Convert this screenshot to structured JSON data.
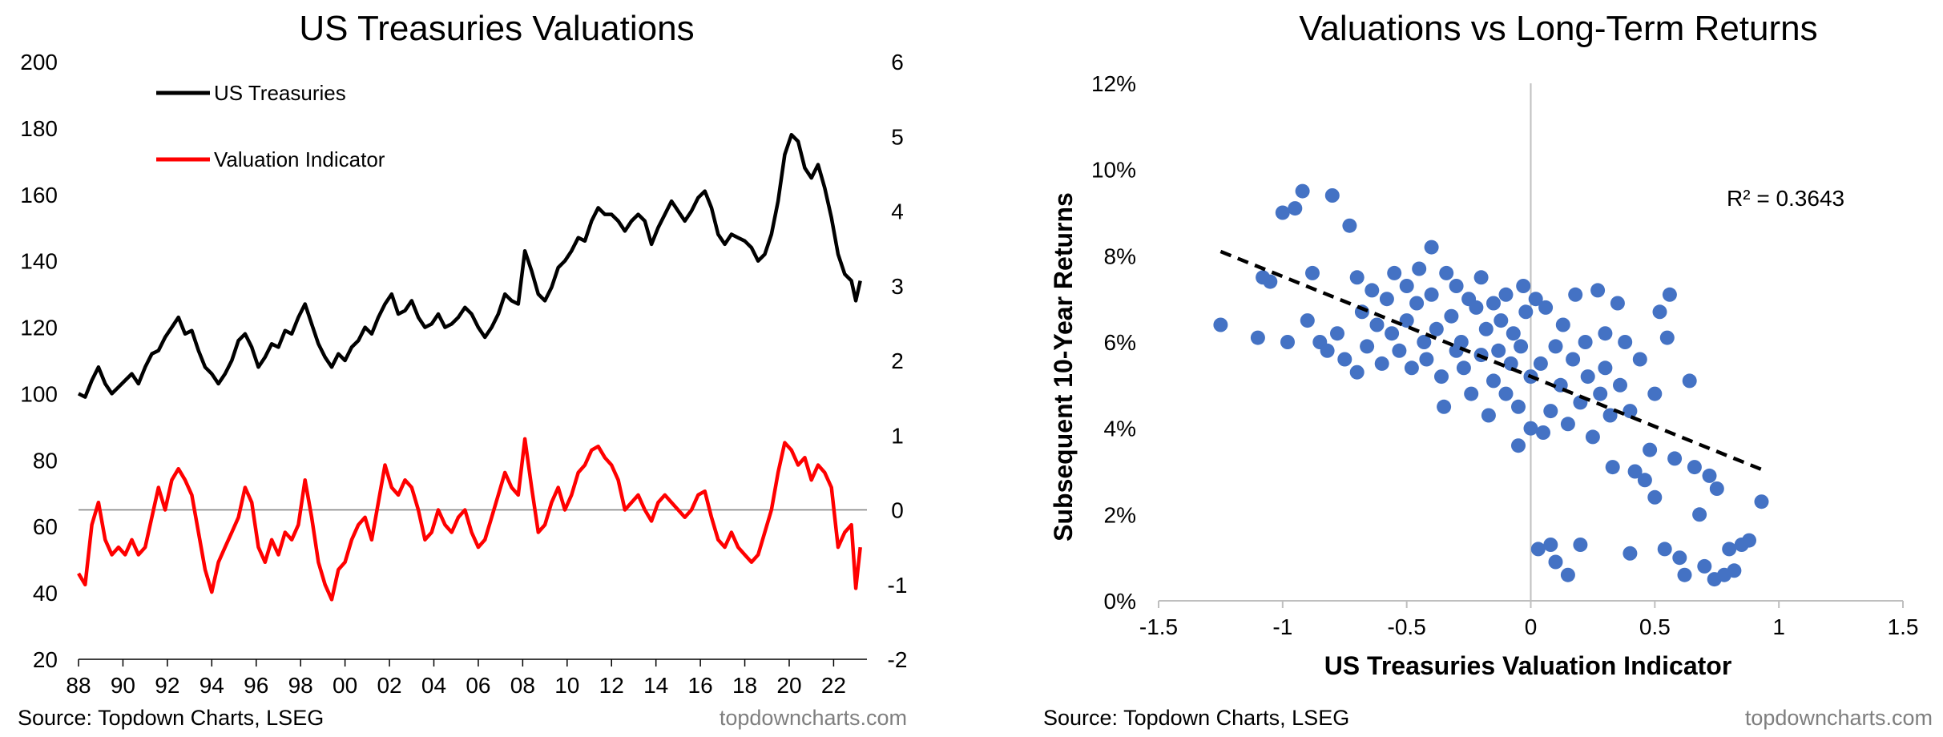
{
  "colors": {
    "treasuries": "#000000",
    "valuation": "#ff0000",
    "scatter": "#4472c4",
    "trendline": "#000000",
    "zero_line": "#7f7f7f",
    "footer_site": "#7f7f7f"
  },
  "chart_data": [
    {
      "type": "line",
      "title": "US Treasuries Valuations",
      "left_axis": {
        "range": [
          20,
          200
        ],
        "ticks": [
          "20",
          "40",
          "60",
          "80",
          "100",
          "120",
          "140",
          "160",
          "180",
          "200"
        ]
      },
      "right_axis": {
        "range": [
          -2,
          6
        ],
        "ticks": [
          "-2",
          "-1",
          "0",
          "1",
          "2",
          "3",
          "4",
          "5",
          "6"
        ]
      },
      "x_axis": {
        "range": [
          1988,
          2023.5
        ],
        "ticks": [
          "88",
          "90",
          "92",
          "94",
          "96",
          "98",
          "00",
          "02",
          "04",
          "06",
          "08",
          "10",
          "12",
          "14",
          "16",
          "18",
          "20",
          "22"
        ]
      },
      "legend_position": "top-left",
      "series": [
        {
          "name": "US Treasuries",
          "axis": "left",
          "x": [
            1988.0,
            1988.3,
            1988.6,
            1988.9,
            1989.2,
            1989.5,
            1989.8,
            1990.1,
            1990.4,
            1990.7,
            1991.0,
            1991.3,
            1991.6,
            1991.9,
            1992.2,
            1992.5,
            1992.8,
            1993.1,
            1993.4,
            1993.7,
            1994.0,
            1994.3,
            1994.6,
            1994.9,
            1995.2,
            1995.5,
            1995.8,
            1996.1,
            1996.4,
            1996.7,
            1997.0,
            1997.3,
            1997.6,
            1997.9,
            1998.2,
            1998.5,
            1998.8,
            1999.1,
            1999.4,
            1999.7,
            2000.0,
            2000.3,
            2000.6,
            2000.9,
            2001.2,
            2001.5,
            2001.8,
            2002.1,
            2002.4,
            2002.7,
            2003.0,
            2003.3,
            2003.6,
            2003.9,
            2004.2,
            2004.5,
            2004.8,
            2005.1,
            2005.4,
            2005.7,
            2006.0,
            2006.3,
            2006.6,
            2006.9,
            2007.2,
            2007.5,
            2007.8,
            2008.1,
            2008.4,
            2008.7,
            2009.0,
            2009.3,
            2009.6,
            2009.9,
            2010.2,
            2010.5,
            2010.8,
            2011.1,
            2011.4,
            2011.7,
            2012.0,
            2012.3,
            2012.6,
            2012.9,
            2013.2,
            2013.5,
            2013.8,
            2014.1,
            2014.4,
            2014.7,
            2015.0,
            2015.3,
            2015.6,
            2015.9,
            2016.2,
            2016.5,
            2016.8,
            2017.1,
            2017.4,
            2017.7,
            2018.0,
            2018.3,
            2018.6,
            2018.9,
            2019.2,
            2019.5,
            2019.8,
            2020.1,
            2020.4,
            2020.7,
            2021.0,
            2021.3,
            2021.6,
            2021.9,
            2022.2,
            2022.5,
            2022.8,
            2023.0,
            2023.2
          ],
          "values": [
            100,
            99,
            104,
            108,
            103,
            100,
            102,
            104,
            106,
            103,
            108,
            112,
            113,
            117,
            120,
            123,
            118,
            119,
            113,
            108,
            106,
            103,
            106,
            110,
            116,
            118,
            114,
            108,
            111,
            115,
            114,
            119,
            118,
            123,
            127,
            121,
            115,
            111,
            108,
            112,
            110,
            114,
            116,
            120,
            118,
            123,
            127,
            130,
            124,
            125,
            128,
            123,
            120,
            121,
            124,
            120,
            121,
            123,
            126,
            124,
            120,
            117,
            120,
            124,
            130,
            128,
            127,
            143,
            137,
            130,
            128,
            132,
            138,
            140,
            143,
            147,
            146,
            152,
            156,
            154,
            154,
            152,
            149,
            152,
            154,
            152,
            145,
            150,
            154,
            158,
            155,
            152,
            155,
            159,
            161,
            156,
            148,
            145,
            148,
            147,
            146,
            144,
            140,
            142,
            148,
            158,
            172,
            178,
            176,
            168,
            165,
            169,
            162,
            153,
            142,
            136,
            134,
            128,
            134
          ]
        },
        {
          "name": "Valuation Indicator",
          "axis": "right",
          "x": [
            1988.0,
            1988.3,
            1988.6,
            1988.9,
            1989.2,
            1989.5,
            1989.8,
            1990.1,
            1990.4,
            1990.7,
            1991.0,
            1991.3,
            1991.6,
            1991.9,
            1992.2,
            1992.5,
            1992.8,
            1993.1,
            1993.4,
            1993.7,
            1994.0,
            1994.3,
            1994.6,
            1994.9,
            1995.2,
            1995.5,
            1995.8,
            1996.1,
            1996.4,
            1996.7,
            1997.0,
            1997.3,
            1997.6,
            1997.9,
            1998.2,
            1998.5,
            1998.8,
            1999.1,
            1999.4,
            1999.7,
            2000.0,
            2000.3,
            2000.6,
            2000.9,
            2001.2,
            2001.5,
            2001.8,
            2002.1,
            2002.4,
            2002.7,
            2003.0,
            2003.3,
            2003.6,
            2003.9,
            2004.2,
            2004.5,
            2004.8,
            2005.1,
            2005.4,
            2005.7,
            2006.0,
            2006.3,
            2006.6,
            2006.9,
            2007.2,
            2007.5,
            2007.8,
            2008.1,
            2008.4,
            2008.7,
            2009.0,
            2009.3,
            2009.6,
            2009.9,
            2010.2,
            2010.5,
            2010.8,
            2011.1,
            2011.4,
            2011.7,
            2012.0,
            2012.3,
            2012.6,
            2012.9,
            2013.2,
            2013.5,
            2013.8,
            2014.1,
            2014.4,
            2014.7,
            2015.0,
            2015.3,
            2015.6,
            2015.9,
            2016.2,
            2016.5,
            2016.8,
            2017.1,
            2017.4,
            2017.7,
            2018.0,
            2018.3,
            2018.6,
            2018.9,
            2019.2,
            2019.5,
            2019.8,
            2020.1,
            2020.4,
            2020.7,
            2021.0,
            2021.3,
            2021.6,
            2021.9,
            2022.2,
            2022.5,
            2022.8,
            2023.0,
            2023.2
          ],
          "values": [
            -0.85,
            -1.0,
            -0.2,
            0.1,
            -0.4,
            -0.6,
            -0.5,
            -0.6,
            -0.4,
            -0.6,
            -0.5,
            -0.1,
            0.3,
            0.0,
            0.4,
            0.55,
            0.4,
            0.2,
            -0.3,
            -0.8,
            -1.1,
            -0.7,
            -0.5,
            -0.3,
            -0.1,
            0.3,
            0.1,
            -0.5,
            -0.7,
            -0.4,
            -0.6,
            -0.3,
            -0.4,
            -0.2,
            0.4,
            -0.1,
            -0.7,
            -1.0,
            -1.2,
            -0.8,
            -0.7,
            -0.4,
            -0.2,
            -0.1,
            -0.4,
            0.1,
            0.6,
            0.3,
            0.2,
            0.4,
            0.3,
            0.0,
            -0.4,
            -0.3,
            0.0,
            -0.2,
            -0.3,
            -0.1,
            0.0,
            -0.3,
            -0.5,
            -0.4,
            -0.1,
            0.2,
            0.5,
            0.3,
            0.2,
            0.95,
            0.3,
            -0.3,
            -0.2,
            0.1,
            0.3,
            0.0,
            0.2,
            0.5,
            0.6,
            0.8,
            0.85,
            0.7,
            0.6,
            0.4,
            0.0,
            0.1,
            0.2,
            0.0,
            -0.15,
            0.1,
            0.2,
            0.1,
            0.0,
            -0.1,
            0.0,
            0.2,
            0.25,
            -0.1,
            -0.4,
            -0.5,
            -0.3,
            -0.5,
            -0.6,
            -0.7,
            -0.6,
            -0.3,
            0.0,
            0.5,
            0.9,
            0.8,
            0.6,
            0.7,
            0.4,
            0.6,
            0.5,
            0.3,
            -0.5,
            -0.3,
            -0.2,
            -1.05,
            -0.5
          ]
        }
      ],
      "zero_line": 0
    },
    {
      "type": "scatter",
      "title": "Valuations vs Long-Term Returns",
      "xlabel": "US Treasuries Valuation Indicator",
      "ylabel": "Subsequent 10-Year Returns",
      "xlim": [
        -1.5,
        1.5
      ],
      "ylim": [
        0,
        12
      ],
      "x_ticks": [
        "-1.5",
        "-1",
        "-0.5",
        "0",
        "0.5",
        "1",
        "1.5"
      ],
      "y_ticks": [
        "0%",
        "2%",
        "4%",
        "6%",
        "8%",
        "10%",
        "12%"
      ],
      "annotation": "R² = 0.3643",
      "trendline": {
        "x": [
          -1.25,
          0.95
        ],
        "y": [
          8.1,
          3.0
        ]
      },
      "points": [
        [
          -1.25,
          6.4
        ],
        [
          -1.1,
          6.1
        ],
        [
          -1.08,
          7.5
        ],
        [
          -1.05,
          7.4
        ],
        [
          -1.0,
          9.0
        ],
        [
          -0.98,
          6.0
        ],
        [
          -0.95,
          9.1
        ],
        [
          -0.92,
          9.5
        ],
        [
          -0.9,
          6.5
        ],
        [
          -0.88,
          7.6
        ],
        [
          -0.85,
          6.0
        ],
        [
          -0.82,
          5.8
        ],
        [
          -0.8,
          9.4
        ],
        [
          -0.78,
          6.2
        ],
        [
          -0.75,
          5.6
        ],
        [
          -0.73,
          8.7
        ],
        [
          -0.7,
          7.5
        ],
        [
          -0.7,
          5.3
        ],
        [
          -0.68,
          6.7
        ],
        [
          -0.66,
          5.9
        ],
        [
          -0.64,
          7.2
        ],
        [
          -0.62,
          6.4
        ],
        [
          -0.6,
          5.5
        ],
        [
          -0.58,
          7.0
        ],
        [
          -0.56,
          6.2
        ],
        [
          -0.55,
          7.6
        ],
        [
          -0.53,
          5.8
        ],
        [
          -0.5,
          7.3
        ],
        [
          -0.5,
          6.5
        ],
        [
          -0.48,
          5.4
        ],
        [
          -0.46,
          6.9
        ],
        [
          -0.45,
          7.7
        ],
        [
          -0.43,
          6.0
        ],
        [
          -0.42,
          5.6
        ],
        [
          -0.4,
          7.1
        ],
        [
          -0.4,
          8.2
        ],
        [
          -0.38,
          6.3
        ],
        [
          -0.36,
          5.2
        ],
        [
          -0.35,
          4.5
        ],
        [
          -0.34,
          7.6
        ],
        [
          -0.32,
          6.6
        ],
        [
          -0.3,
          5.8
        ],
        [
          -0.3,
          7.3
        ],
        [
          -0.28,
          6.0
        ],
        [
          -0.27,
          5.4
        ],
        [
          -0.25,
          7.0
        ],
        [
          -0.24,
          4.8
        ],
        [
          -0.22,
          6.8
        ],
        [
          -0.2,
          5.7
        ],
        [
          -0.2,
          7.5
        ],
        [
          -0.18,
          6.3
        ],
        [
          -0.17,
          4.3
        ],
        [
          -0.15,
          5.1
        ],
        [
          -0.15,
          6.9
        ],
        [
          -0.13,
          5.8
        ],
        [
          -0.12,
          6.5
        ],
        [
          -0.1,
          4.8
        ],
        [
          -0.1,
          7.1
        ],
        [
          -0.08,
          5.5
        ],
        [
          -0.07,
          6.2
        ],
        [
          -0.05,
          4.5
        ],
        [
          -0.05,
          3.6
        ],
        [
          -0.04,
          5.9
        ],
        [
          -0.03,
          7.3
        ],
        [
          -0.02,
          6.7
        ],
        [
          0.0,
          5.2
        ],
        [
          0.0,
          4.0
        ],
        [
          0.02,
          7.0
        ],
        [
          0.03,
          1.2
        ],
        [
          0.04,
          5.5
        ],
        [
          0.05,
          3.9
        ],
        [
          0.06,
          6.8
        ],
        [
          0.08,
          4.4
        ],
        [
          0.08,
          1.3
        ],
        [
          0.1,
          5.9
        ],
        [
          0.1,
          0.9
        ],
        [
          0.12,
          5.0
        ],
        [
          0.13,
          6.4
        ],
        [
          0.15,
          4.1
        ],
        [
          0.15,
          0.6
        ],
        [
          0.17,
          5.6
        ],
        [
          0.18,
          7.1
        ],
        [
          0.2,
          4.6
        ],
        [
          0.2,
          1.3
        ],
        [
          0.22,
          6.0
        ],
        [
          0.23,
          5.2
        ],
        [
          0.25,
          3.8
        ],
        [
          0.27,
          7.2
        ],
        [
          0.28,
          4.8
        ],
        [
          0.3,
          5.4
        ],
        [
          0.3,
          6.2
        ],
        [
          0.32,
          4.3
        ],
        [
          0.33,
          3.1
        ],
        [
          0.35,
          6.9
        ],
        [
          0.36,
          5.0
        ],
        [
          0.38,
          6.0
        ],
        [
          0.4,
          4.4
        ],
        [
          0.4,
          1.1
        ],
        [
          0.42,
          3.0
        ],
        [
          0.44,
          5.6
        ],
        [
          0.46,
          2.8
        ],
        [
          0.48,
          3.5
        ],
        [
          0.5,
          2.4
        ],
        [
          0.5,
          4.8
        ],
        [
          0.52,
          6.7
        ],
        [
          0.54,
          1.2
        ],
        [
          0.55,
          6.1
        ],
        [
          0.56,
          7.1
        ],
        [
          0.58,
          3.3
        ],
        [
          0.6,
          1.0
        ],
        [
          0.62,
          0.6
        ],
        [
          0.64,
          5.1
        ],
        [
          0.66,
          3.1
        ],
        [
          0.68,
          2.0
        ],
        [
          0.7,
          0.8
        ],
        [
          0.72,
          2.9
        ],
        [
          0.74,
          0.5
        ],
        [
          0.75,
          2.6
        ],
        [
          0.78,
          0.6
        ],
        [
          0.8,
          1.2
        ],
        [
          0.82,
          0.7
        ],
        [
          0.85,
          1.3
        ],
        [
          0.88,
          1.4
        ],
        [
          0.93,
          2.3
        ]
      ]
    }
  ],
  "footer": [
    {
      "source": "Source: Topdown Charts, LSEG",
      "site": "topdowncharts.com"
    },
    {
      "source": "Source: Topdown Charts, LSEG",
      "site": "topdowncharts.com"
    }
  ]
}
